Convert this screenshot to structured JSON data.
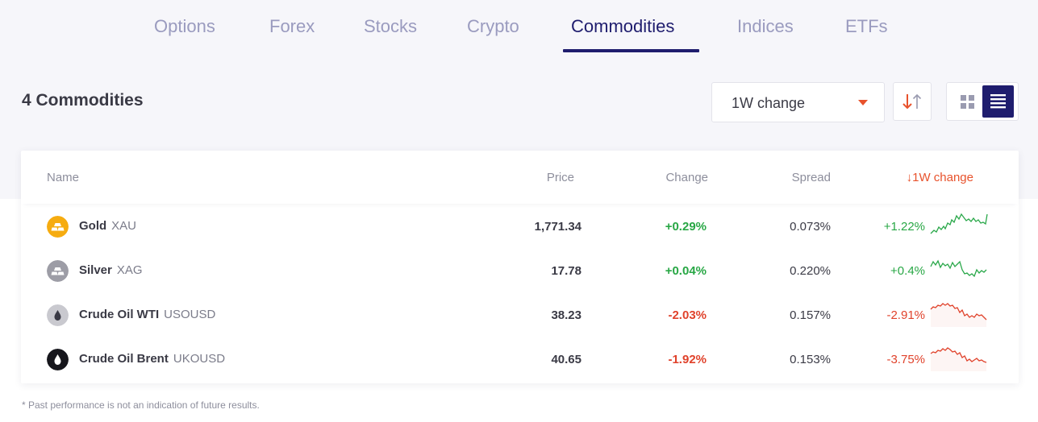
{
  "tabs": [
    {
      "label": "Options",
      "active": false
    },
    {
      "label": "Forex",
      "active": false
    },
    {
      "label": "Stocks",
      "active": false
    },
    {
      "label": "Crypto",
      "active": false
    },
    {
      "label": "Commodities",
      "active": true
    },
    {
      "label": "Indices",
      "active": false
    },
    {
      "label": "ETFs",
      "active": false
    }
  ],
  "header": {
    "title": "4 Commodities",
    "sort_select": {
      "selected": "1W change"
    },
    "sort_icon": "sort-arrows-icon",
    "view_modes": [
      {
        "icon": "grid-view-icon",
        "active": false
      },
      {
        "icon": "list-view-icon",
        "active": true
      }
    ]
  },
  "table": {
    "columns": {
      "name": "Name",
      "price": "Price",
      "change": "Change",
      "spread": "Spread",
      "week_change": "↓1W change"
    },
    "rows": [
      {
        "name": "Gold",
        "symbol": "XAU",
        "price": "1,771.34",
        "change": "+0.29%",
        "spread": "0.073%",
        "week_change": "+1.22%",
        "trend": "up",
        "icon": "gold-bars-icon"
      },
      {
        "name": "Silver",
        "symbol": "XAG",
        "price": "17.78",
        "change": "+0.04%",
        "spread": "0.220%",
        "week_change": "+0.4%",
        "trend": "up",
        "icon": "silver-bars-icon"
      },
      {
        "name": "Crude Oil WTI",
        "symbol": "USOUSD",
        "price": "38.23",
        "change": "-2.03%",
        "spread": "0.157%",
        "week_change": "-2.91%",
        "trend": "down",
        "icon": "oil-drop-icon"
      },
      {
        "name": "Crude Oil Brent",
        "symbol": "UKOUSD",
        "price": "40.65",
        "change": "-1.92%",
        "spread": "0.153%",
        "week_change": "-3.75%",
        "trend": "down",
        "icon": "oil-drop-icon"
      }
    ]
  },
  "footnote": "* Past performance is not an indication of future results.",
  "colors": {
    "accent": "#1f1d6e",
    "positive": "#28a745",
    "negative": "#e0422b",
    "sort_highlight": "#e8522c"
  }
}
